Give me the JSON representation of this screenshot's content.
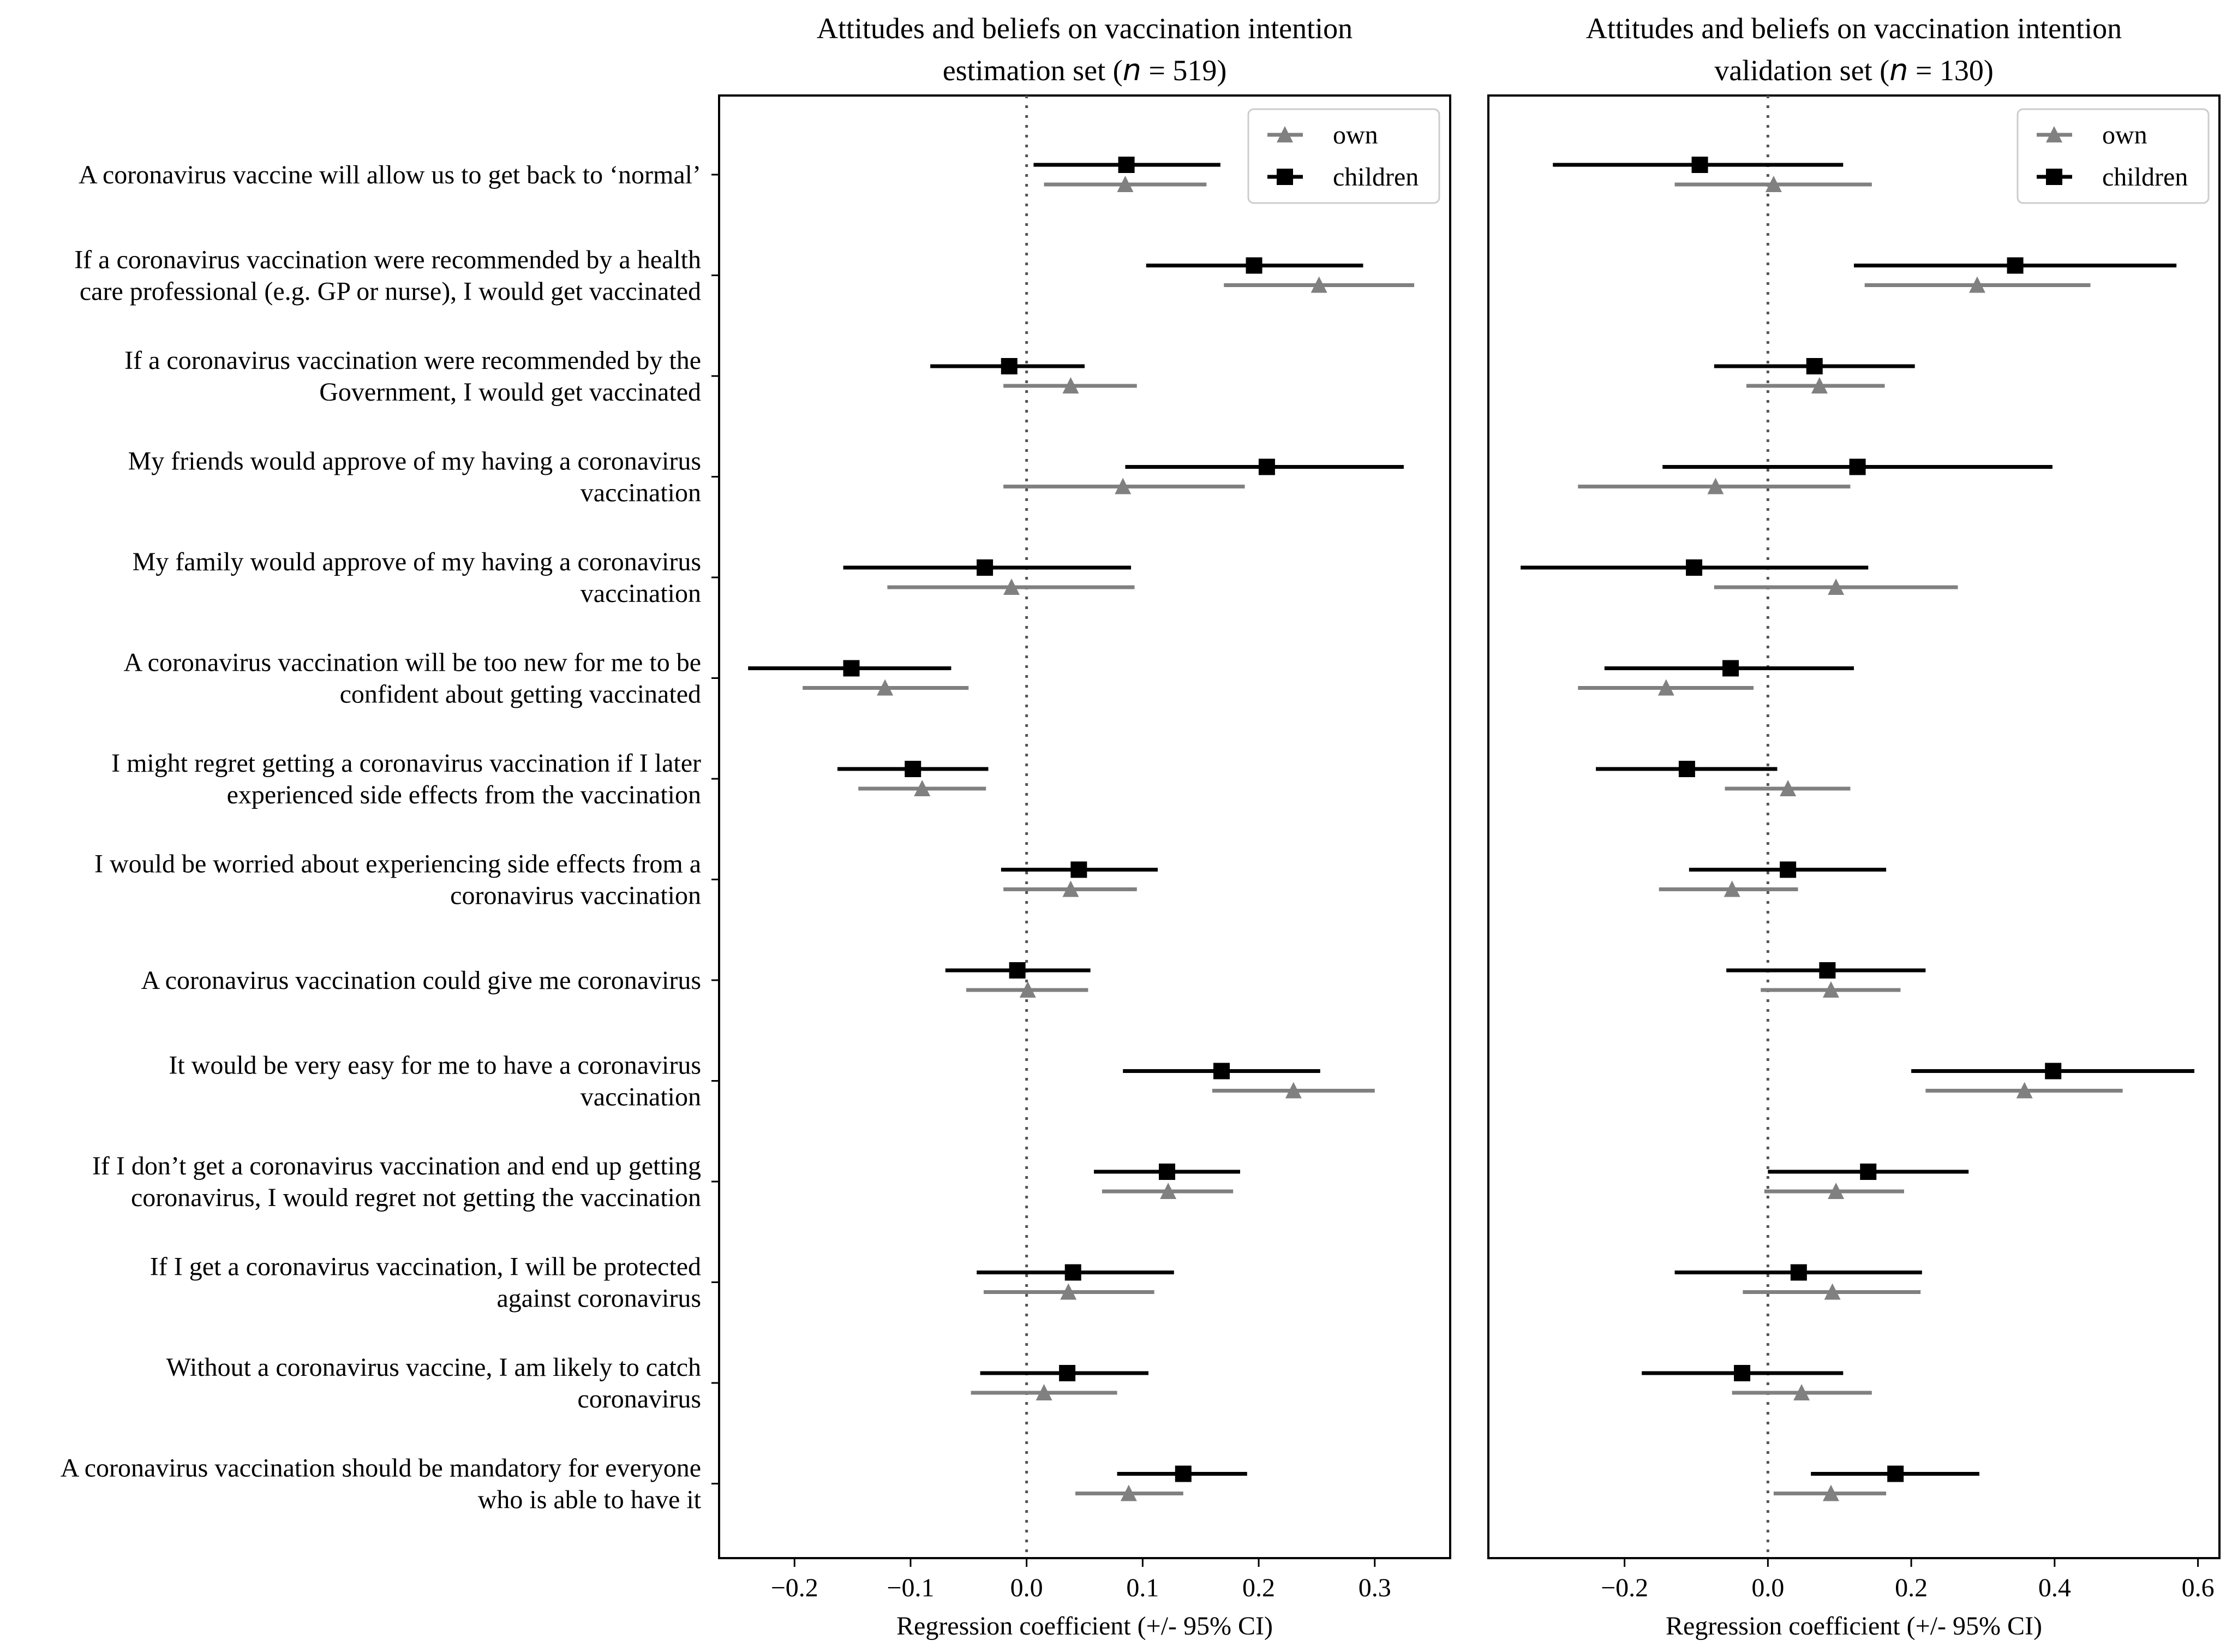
{
  "chart_data": {
    "type": "errorbar",
    "items": [
      [
        "A coronavirus vaccine will allow us to get back to ‘normal’"
      ],
      [
        "If a coronavirus vaccination were recommended by a health",
        "care professional (e.g. GP or nurse), I would get vaccinated"
      ],
      [
        "If a coronavirus vaccination were recommended by the",
        "Government, I would get vaccinated"
      ],
      [
        "My friends would approve of my having a coronavirus",
        "vaccination"
      ],
      [
        "My family would approve of my having a coronavirus",
        "vaccination"
      ],
      [
        "A coronavirus vaccination will be too new for me to be",
        "confident about getting vaccinated"
      ],
      [
        "I might regret getting a coronavirus vaccination if I later",
        "experienced side effects from the vaccination"
      ],
      [
        "I would be worried about experiencing side effects from a",
        "coronavirus vaccination"
      ],
      [
        "A coronavirus vaccination could give me coronavirus"
      ],
      [
        "It would be very easy for me to have a coronavirus",
        "vaccination"
      ],
      [
        "If I don’t get a coronavirus vaccination and end up getting",
        "coronavirus, I would regret not getting the vaccination"
      ],
      [
        "If I get a coronavirus vaccination, I will be protected",
        "against coronavirus"
      ],
      [
        "Without a coronavirus vaccine, I am likely to catch",
        "coronavirus"
      ],
      [
        "A coronavirus vaccination should be mandatory for everyone",
        "who is able to have it"
      ]
    ],
    "xlabel": "Regression coefficient (+/- 95% CI)",
    "legend": [
      {
        "name": "own",
        "marker": "triangle",
        "color": "#808080"
      },
      {
        "name": "children",
        "marker": "square",
        "color": "#000000"
      }
    ],
    "panels": [
      {
        "title_line1": "Attitudes and beliefs on vaccination intention",
        "title_pre": "estimation set (",
        "title_n": "n",
        "title_post": " = 519)",
        "xlim": [
          -0.265,
          0.365
        ],
        "ticks": [
          -0.2,
          -0.1,
          0.0,
          0.1,
          0.2,
          0.3
        ],
        "tick_labels": [
          "−0.2",
          "−0.1",
          "0.0",
          "0.1",
          "0.2",
          "0.3"
        ],
        "legend_position": "top-right",
        "series": [
          {
            "name": "own",
            "values": [
              [
                0.085,
                0.015,
                0.155
              ],
              [
                0.252,
                0.17,
                0.334
              ],
              [
                0.038,
                -0.02,
                0.095
              ],
              [
                0.083,
                -0.02,
                0.188
              ],
              [
                -0.013,
                -0.12,
                0.093
              ],
              [
                -0.122,
                -0.193,
                -0.05
              ],
              [
                -0.09,
                -0.145,
                -0.035
              ],
              [
                0.038,
                -0.02,
                0.095
              ],
              [
                0.001,
                -0.052,
                0.053
              ],
              [
                0.23,
                0.16,
                0.3
              ],
              [
                0.122,
                0.065,
                0.178
              ],
              [
                0.036,
                -0.037,
                0.11
              ],
              [
                0.015,
                -0.048,
                0.078
              ],
              [
                0.088,
                0.042,
                0.135
              ]
            ]
          },
          {
            "name": "children",
            "values": [
              [
                0.086,
                0.006,
                0.167
              ],
              [
                0.196,
                0.103,
                0.29
              ],
              [
                -0.015,
                -0.083,
                0.05
              ],
              [
                0.207,
                0.085,
                0.325
              ],
              [
                -0.036,
                -0.158,
                0.09
              ],
              [
                -0.151,
                -0.24,
                -0.065
              ],
              [
                -0.098,
                -0.163,
                -0.033
              ],
              [
                0.045,
                -0.022,
                0.113
              ],
              [
                -0.008,
                -0.07,
                0.055
              ],
              [
                0.168,
                0.083,
                0.253
              ],
              [
                0.121,
                0.058,
                0.184
              ],
              [
                0.04,
                -0.043,
                0.127
              ],
              [
                0.035,
                -0.04,
                0.105
              ],
              [
                0.135,
                0.078,
                0.19
              ]
            ]
          }
        ]
      },
      {
        "title_line1": "Attitudes and beliefs on vaccination intention",
        "title_pre": "validation set (",
        "title_n": "n",
        "title_post": " = 130)",
        "xlim": [
          -0.39,
          0.63
        ],
        "ticks": [
          -0.2,
          0.0,
          0.2,
          0.4,
          0.6
        ],
        "tick_labels": [
          "−0.2",
          "0.0",
          "0.2",
          "0.4",
          "0.6"
        ],
        "legend_position": "top-right",
        "series": [
          {
            "name": "own",
            "values": [
              [
                0.008,
                -0.13,
                0.145
              ],
              [
                0.292,
                0.135,
                0.45
              ],
              [
                0.072,
                -0.03,
                0.163
              ],
              [
                -0.073,
                -0.265,
                0.115
              ],
              [
                0.095,
                -0.075,
                0.265
              ],
              [
                -0.142,
                -0.265,
                -0.02
              ],
              [
                0.028,
                -0.06,
                0.115
              ],
              [
                -0.05,
                -0.152,
                0.042
              ],
              [
                0.088,
                -0.01,
                0.185
              ],
              [
                0.358,
                0.22,
                0.495
              ],
              [
                0.095,
                -0.005,
                0.19
              ],
              [
                0.09,
                -0.035,
                0.213
              ],
              [
                0.047,
                -0.05,
                0.145
              ],
              [
                0.088,
                0.008,
                0.165
              ]
            ]
          },
          {
            "name": "children",
            "values": [
              [
                -0.095,
                -0.3,
                0.105
              ],
              [
                0.345,
                0.12,
                0.57
              ],
              [
                0.065,
                -0.075,
                0.205
              ],
              [
                0.125,
                -0.147,
                0.397
              ],
              [
                -0.103,
                -0.345,
                0.14
              ],
              [
                -0.052,
                -0.228,
                0.12
              ],
              [
                -0.113,
                -0.24,
                0.013
              ],
              [
                0.028,
                -0.11,
                0.165
              ],
              [
                0.083,
                -0.058,
                0.22
              ],
              [
                0.398,
                0.2,
                0.595
              ],
              [
                0.14,
                0.0,
                0.28
              ],
              [
                0.043,
                -0.13,
                0.215
              ],
              [
                -0.036,
                -0.176,
                0.105
              ],
              [
                0.178,
                0.06,
                0.295
              ]
            ]
          }
        ]
      }
    ]
  }
}
